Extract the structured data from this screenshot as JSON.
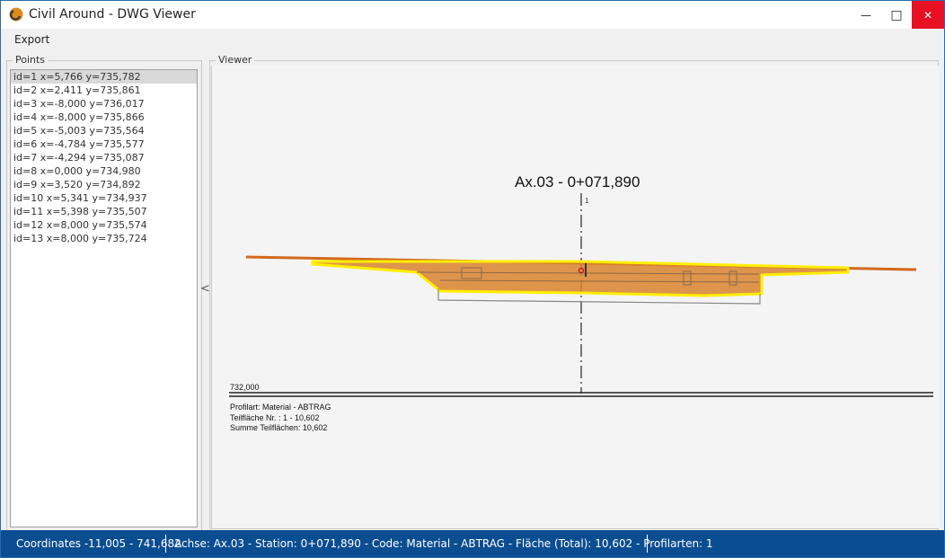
{
  "window": {
    "title": "Civil Around - DWG Viewer",
    "minimize_glyph": "—",
    "maximize_glyph": "□",
    "close_glyph": "✕"
  },
  "menu": {
    "export_label": "Export"
  },
  "points_panel": {
    "label": "Points",
    "items": [
      "id=1 x=5,766 y=735,782",
      "id=2 x=2,411 y=735,861",
      "id=3 x=-8,000 y=736,017",
      "id=4 x=-8,000 y=735,866",
      "id=5 x=-5,003 y=735,564",
      "id=6 x=-4,784 y=735,577",
      "id=7 x=-4,294 y=735,087",
      "id=8 x=0,000 y=734,980",
      "id=9 x=3,520 y=734,892",
      "id=10 x=5,341 y=734,937",
      "id=11 x=5,398 y=735,507",
      "id=12 x=8,000 y=735,574",
      "id=13 x=8,000 y=735,724"
    ],
    "selected_index": 0,
    "collapse_glyph": "<"
  },
  "viewer": {
    "label": "Viewer",
    "drawing": {
      "title": "Ax.03 - 0+071,890",
      "axis_marker": "1",
      "datum_label": "732,000",
      "profile_type": "Profilart: Material - ABTRAG",
      "partial_area": "Teilfläche Nr. : 1 - 10,602",
      "total_area": "Summe Teilflächen: 10,602"
    },
    "colors": {
      "fill": "#d9822b",
      "outline": "#ffee00",
      "road_line": "#d2691e",
      "lines": "#777777"
    }
  },
  "status": {
    "coordinates": "Coordinates -11,005 - 741,682",
    "details": "Achse: Ax.03 - Station: 0+071,890 - Code: Material - ABTRAG - Fläche (Total): 10,602 - Profilarten: 1"
  }
}
